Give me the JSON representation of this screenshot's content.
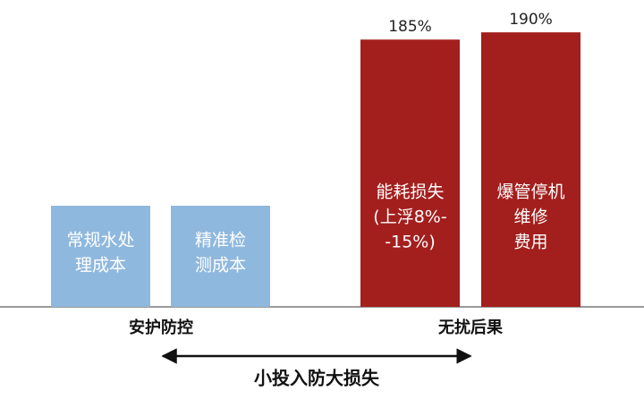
{
  "chart_data": {
    "type": "bar",
    "categories": [
      [
        "常规水处",
        "理成本"
      ],
      [
        "精准检",
        "测成本"
      ],
      [
        "能耗损失",
        "(上浮8%-",
        "-15%)"
      ],
      [
        "爆管停机",
        "维修",
        "费用"
      ]
    ],
    "values": [
      70,
      70,
      185,
      190
    ],
    "value_labels": [
      null,
      null,
      "185%",
      "190%"
    ],
    "colors": [
      "#8fb8de",
      "#8fb8de",
      "#a31f1d",
      "#a31f1d"
    ],
    "ylim": [
      0,
      200
    ],
    "groups": [
      "安护防控",
      "无扰后果"
    ],
    "annotation": "小投入防大损失"
  }
}
